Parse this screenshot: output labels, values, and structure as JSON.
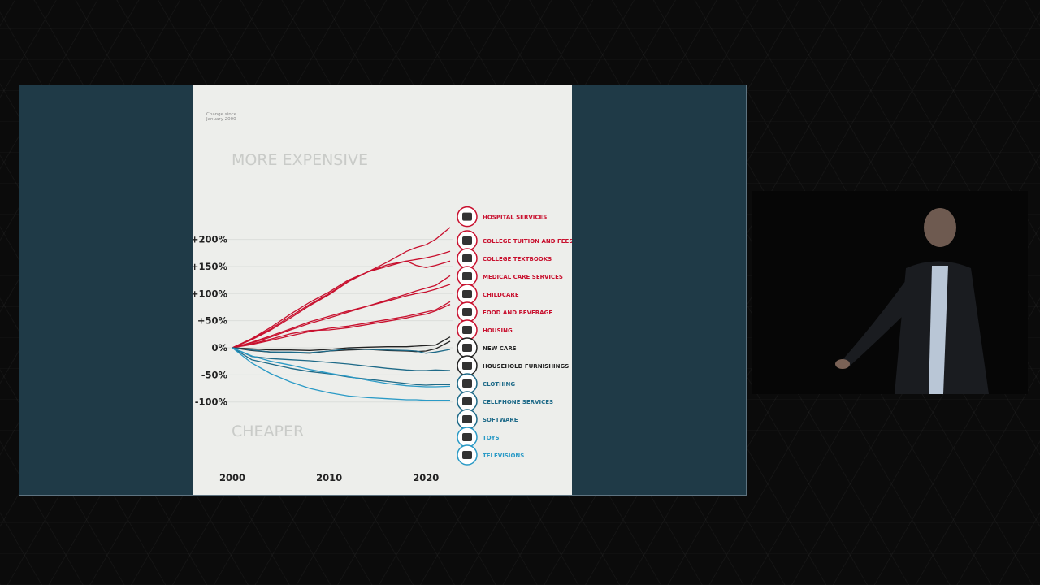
{
  "chart_data": {
    "type": "line",
    "title": "",
    "subtitle": "Change since January 2000",
    "subtitle_lines": [
      "Change since",
      "January 2000"
    ],
    "xlabel": "",
    "ylabel": "",
    "xlim": [
      2000,
      2022.5
    ],
    "ylim": [
      -100,
      200
    ],
    "x_ticks": [
      "2000",
      "2010",
      "2020"
    ],
    "y_ticks": [
      "+200%",
      "+150%",
      "+100%",
      "+50%",
      "0%",
      "-50%",
      "-100%"
    ],
    "annotations": [
      "MORE EXPENSIVE",
      "CHEAPER"
    ],
    "grid": true,
    "legend": "right",
    "x": [
      2000,
      2002,
      2004,
      2006,
      2008,
      2010,
      2012,
      2014,
      2016,
      2018,
      2019,
      2020,
      2021,
      2022.5
    ],
    "series": [
      {
        "name": "HOSPITAL SERVICES",
        "color": "#c8102e",
        "icon": "hospital-icon",
        "values": [
          0,
          15,
          33,
          55,
          78,
          98,
          122,
          140,
          158,
          178,
          185,
          190,
          200,
          222
        ]
      },
      {
        "name": "COLLEGE TUITION AND FEES",
        "color": "#c8102e",
        "icon": "graduation-cap-icon",
        "values": [
          0,
          17,
          38,
          62,
          84,
          103,
          125,
          140,
          153,
          160,
          163,
          166,
          170,
          178
        ]
      },
      {
        "name": "COLLEGE TEXTBOOKS",
        "color": "#c8102e",
        "icon": "textbook-icon",
        "values": [
          0,
          16,
          35,
          58,
          80,
          100,
          123,
          140,
          150,
          160,
          152,
          148,
          152,
          160
        ]
      },
      {
        "name": "MEDICAL CARE SERVICES",
        "color": "#c8102e",
        "icon": "camera-icon",
        "values": [
          0,
          9,
          20,
          33,
          45,
          55,
          66,
          77,
          88,
          99,
          105,
          110,
          115,
          133
        ]
      },
      {
        "name": "CHILDCARE",
        "color": "#c8102e",
        "icon": "stroller-icon",
        "values": [
          0,
          10,
          22,
          35,
          48,
          58,
          68,
          77,
          86,
          96,
          100,
          103,
          108,
          117
        ]
      },
      {
        "name": "FOOD AND BEVERAGE",
        "color": "#c8102e",
        "icon": "food-icon",
        "values": [
          0,
          6,
          14,
          22,
          30,
          36,
          40,
          46,
          52,
          58,
          62,
          66,
          70,
          85
        ]
      },
      {
        "name": "HOUSING",
        "color": "#c8102e",
        "icon": "house-icon",
        "values": [
          0,
          7,
          16,
          26,
          32,
          33,
          37,
          43,
          49,
          55,
          59,
          62,
          68,
          80
        ]
      },
      {
        "name": "NEW CARS",
        "color": "#222222",
        "icon": "car-icon",
        "values": [
          0,
          -2,
          -4,
          -4,
          -5,
          -3,
          0,
          1,
          2,
          2,
          3,
          4,
          5,
          20
        ]
      },
      {
        "name": "HOUSEHOLD FURNISHINGS",
        "color": "#222222",
        "icon": "sofa-icon",
        "values": [
          0,
          -5,
          -8,
          -9,
          -10,
          -6,
          -4,
          -3,
          -5,
          -6,
          -7,
          -6,
          -2,
          12
        ]
      },
      {
        "name": "CLOTHING",
        "color": "#1e6a88",
        "icon": "shirt-icon",
        "values": [
          0,
          -4,
          -8,
          -8,
          -9,
          -6,
          -2,
          -3,
          -4,
          -5,
          -6,
          -10,
          -8,
          -3
        ]
      },
      {
        "name": "CELLPHONE SERVICES",
        "color": "#1e6a88",
        "icon": "cellphone-icon",
        "values": [
          0,
          -16,
          -20,
          -22,
          -24,
          -27,
          -30,
          -34,
          -38,
          -41,
          -42,
          -42,
          -41,
          -42
        ]
      },
      {
        "name": "SOFTWARE",
        "color": "#1e6a88",
        "icon": "software-icon",
        "values": [
          0,
          -22,
          -30,
          -38,
          -44,
          -48,
          -54,
          -58,
          -62,
          -66,
          -68,
          -69,
          -68,
          -68
        ]
      },
      {
        "name": "TOYS",
        "color": "#2a9ac6",
        "icon": "toys-icon",
        "values": [
          0,
          -15,
          -25,
          -32,
          -40,
          -47,
          -53,
          -60,
          -66,
          -70,
          -71,
          -72,
          -72,
          -71
        ]
      },
      {
        "name": "TELEVISIONS",
        "color": "#2a9ac6",
        "icon": "television-icon",
        "values": [
          0,
          -28,
          -48,
          -63,
          -75,
          -83,
          -89,
          -92,
          -94,
          -96,
          -96,
          -97,
          -97,
          -97
        ]
      }
    ]
  }
}
